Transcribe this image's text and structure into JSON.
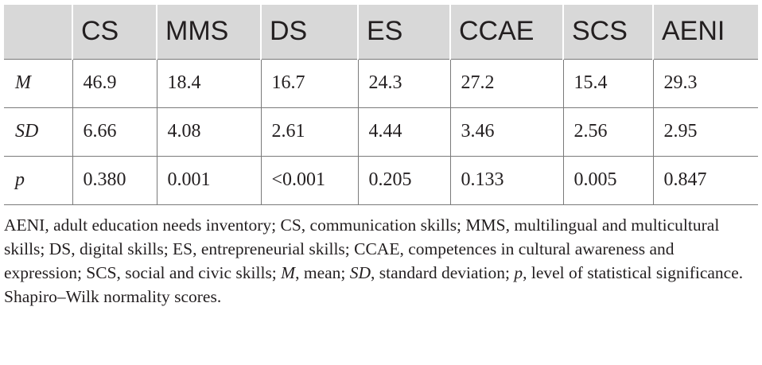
{
  "table": {
    "columns": [
      "",
      "CS",
      "MMS",
      "DS",
      "ES",
      "CCAE",
      "SCS",
      "AENI"
    ],
    "rows": [
      {
        "label": "M",
        "values": [
          "46.9",
          "18.4",
          "16.7",
          "24.3",
          "27.2",
          "15.4",
          "29.3"
        ]
      },
      {
        "label": "SD",
        "values": [
          "6.66",
          "4.08",
          "2.61",
          "4.44",
          "3.46",
          "2.56",
          "2.95"
        ]
      },
      {
        "label": "p",
        "values": [
          "0.380",
          "0.001",
          "<0.001",
          "0.205",
          "0.133",
          "0.005",
          "0.847"
        ]
      }
    ]
  },
  "footnote": {
    "part1": "AENI, adult education needs inventory; CS, communication skills; MMS, multilingual and multicultural skills; DS, digital skills; ES, entrepreneurial skills; CCAE, competences in cultural awareness and expression; SCS, social and civic skills; ",
    "m_label": "M",
    "part2": ", mean; ",
    "sd_label": "SD",
    "part3": ", standard deviation; ",
    "p_label": "p",
    "part4": ", level of statistical significance.",
    "caption": "Shapiro–Wilk normality scores."
  }
}
